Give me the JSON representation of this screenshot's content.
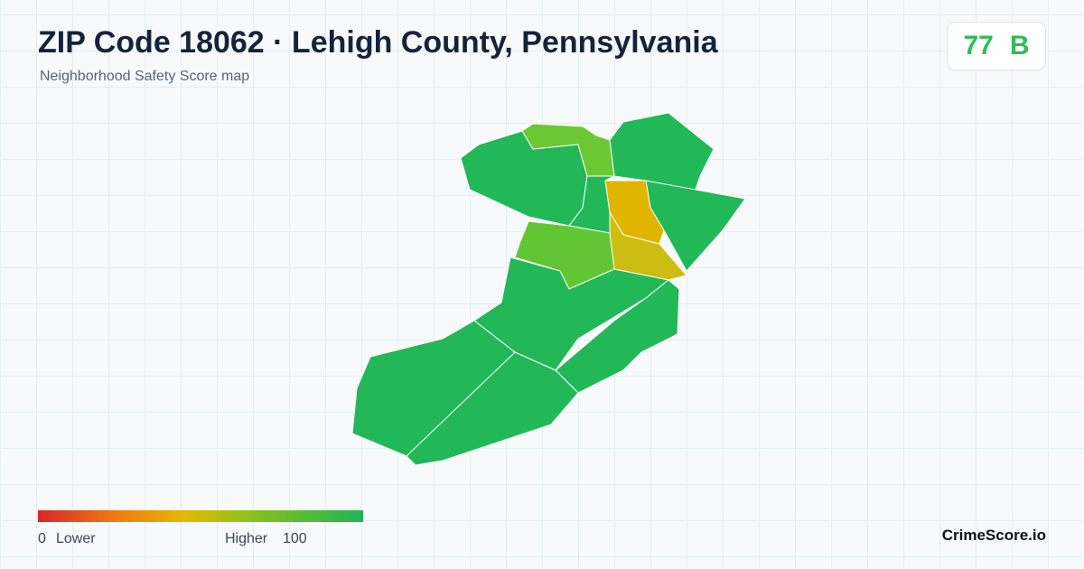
{
  "header": {
    "title": "ZIP Code 18062 · Lehigh County, Pennsylvania",
    "subtitle": "Neighborhood Safety Score map",
    "score": 77,
    "grade": "B"
  },
  "legend": {
    "min": 0,
    "min_label": "Lower",
    "max_label": "Higher",
    "max": 100
  },
  "footer": {
    "brand": "CrimeScore.io"
  }
}
